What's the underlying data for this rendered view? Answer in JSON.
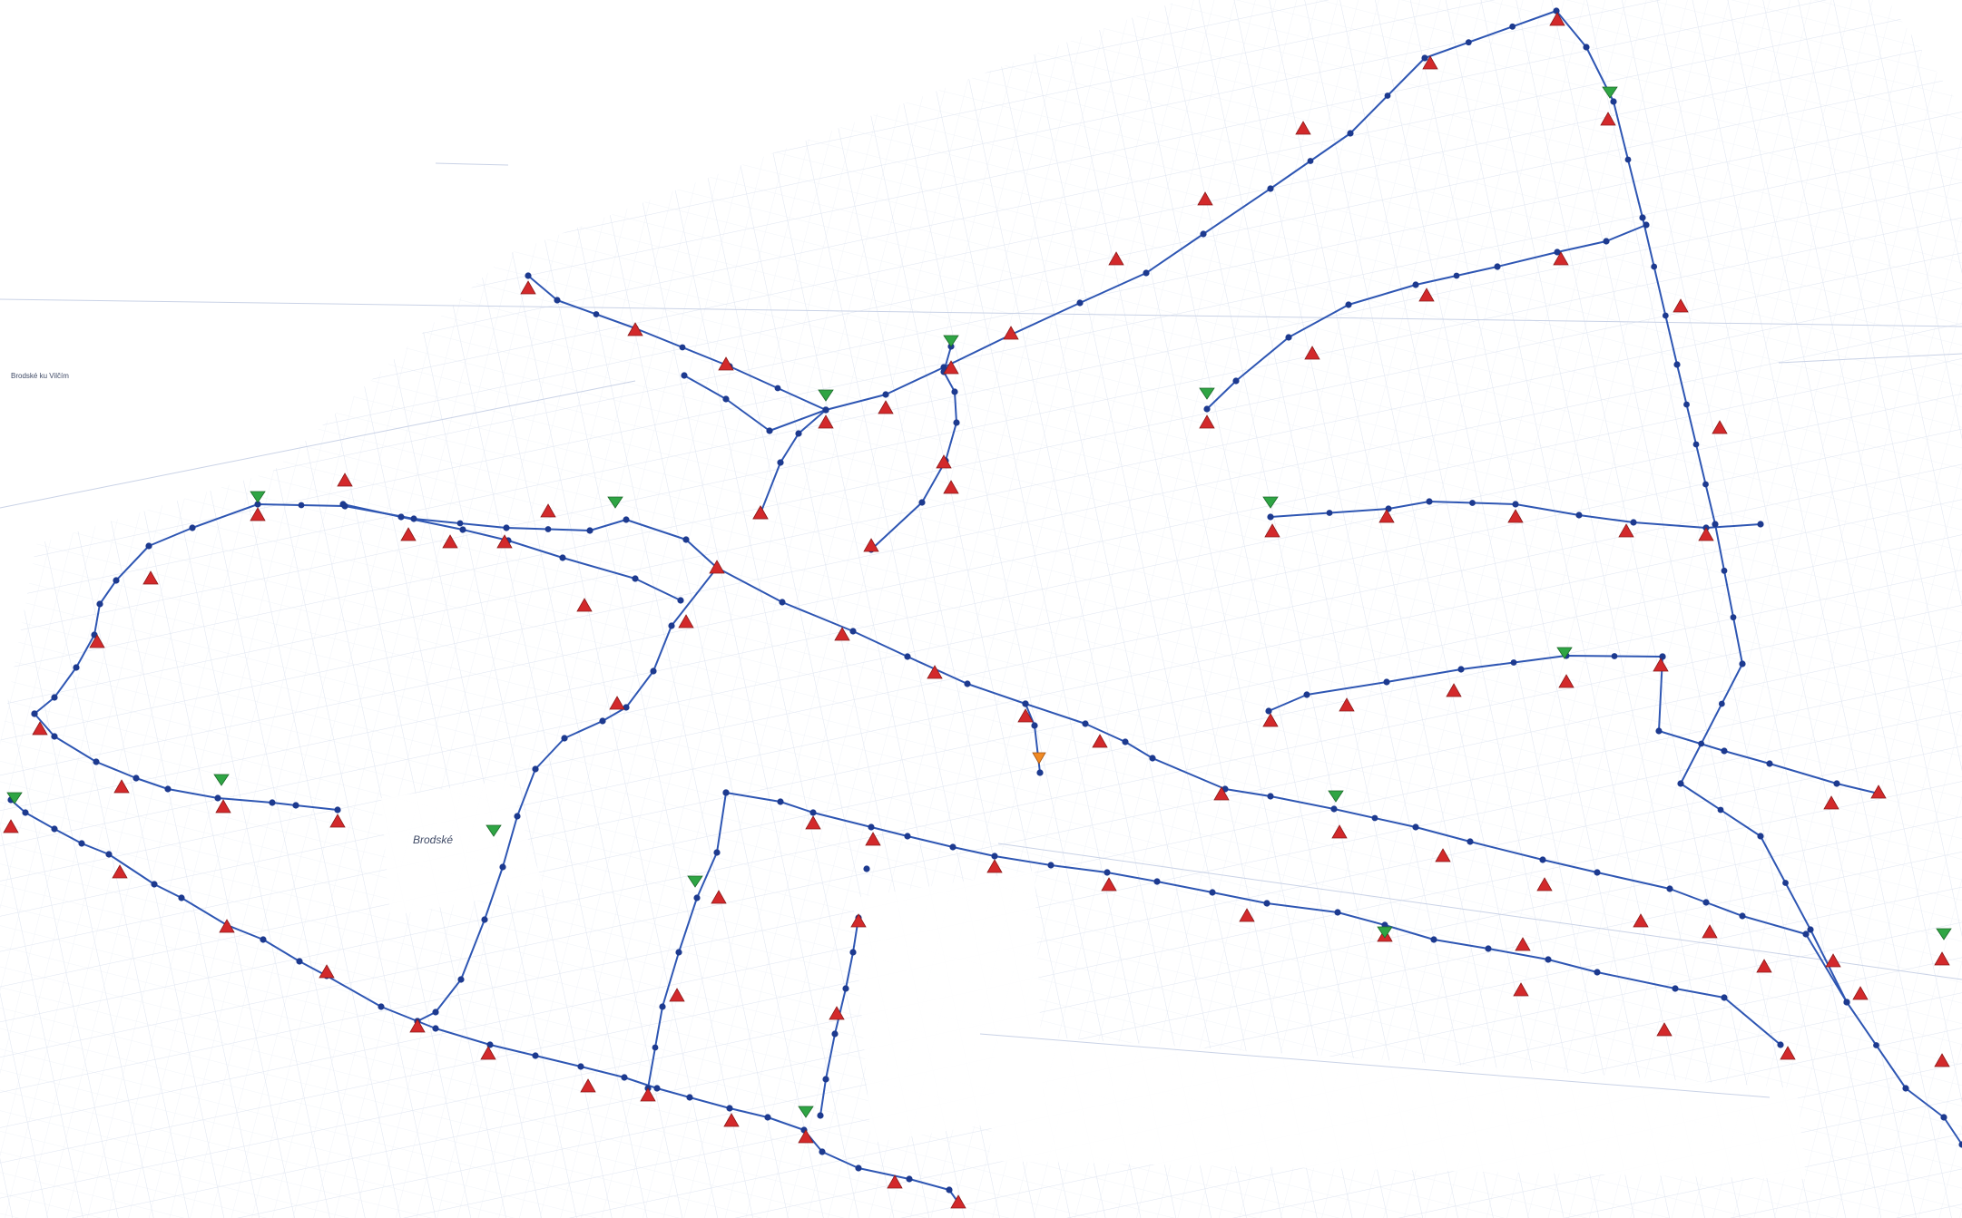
{
  "map": {
    "place_labels": [
      {
        "text": "Brodské",
        "style": "italic"
      },
      {
        "text": "Brodské ku Vilčím",
        "style": "normal"
      }
    ],
    "colors": {
      "background": "#ffffff",
      "base_lines": "#c9d2e6",
      "base_lines_dark": "#8d9bbf",
      "network_line": "#2e56b3",
      "node_fill": "#1d3a8f",
      "marker_red": "#d3292b",
      "marker_green": "#2fa544",
      "marker_orange": "#f08a24"
    },
    "legend_icons": {
      "node": "pipe-node-icon",
      "red": "red-triangle-marker-icon",
      "green": "green-valve-marker-icon",
      "orange": "orange-source-marker-icon"
    }
  }
}
